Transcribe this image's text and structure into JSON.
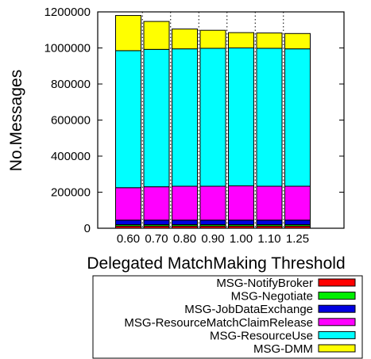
{
  "chart_data": {
    "type": "bar",
    "stacked": true,
    "title": "",
    "xlabel": "Delegated MatchMaking Threshold",
    "ylabel": "No.Messages",
    "categories": [
      "0.60",
      "0.70",
      "0.80",
      "0.90",
      "1.00",
      "1.10",
      "1.25"
    ],
    "ylim": [
      0,
      1200000
    ],
    "yticks": [
      "0",
      "200000",
      "400000",
      "600000",
      "800000",
      "1000000",
      "1200000"
    ],
    "grid": "vertical dotted",
    "legend_position": "below",
    "series": [
      {
        "name": "MSG-NotifyBroker",
        "color": "#ff0000",
        "values": [
          12000,
          12000,
          12000,
          12000,
          12000,
          12000,
          12000
        ]
      },
      {
        "name": "MSG-Negotiate",
        "color": "#00ee00",
        "values": [
          8000,
          8000,
          8000,
          8000,
          8000,
          8000,
          8000
        ]
      },
      {
        "name": "MSG-JobDataExchange",
        "color": "#0000e0",
        "values": [
          25000,
          25000,
          25000,
          25000,
          25000,
          25000,
          25000
        ]
      },
      {
        "name": "MSG-ResourceMatchClaimRelease",
        "color": "#ff00ff",
        "values": [
          180000,
          185000,
          188000,
          188000,
          190000,
          188000,
          188000
        ]
      },
      {
        "name": "MSG-ResourceUse",
        "color": "#00ffff",
        "values": [
          760000,
          762000,
          762000,
          765000,
          765000,
          765000,
          762000
        ]
      },
      {
        "name": "MSG-DMM",
        "color": "#ffff00",
        "values": [
          195000,
          155000,
          110000,
          100000,
          85000,
          85000,
          85000
        ]
      }
    ]
  }
}
